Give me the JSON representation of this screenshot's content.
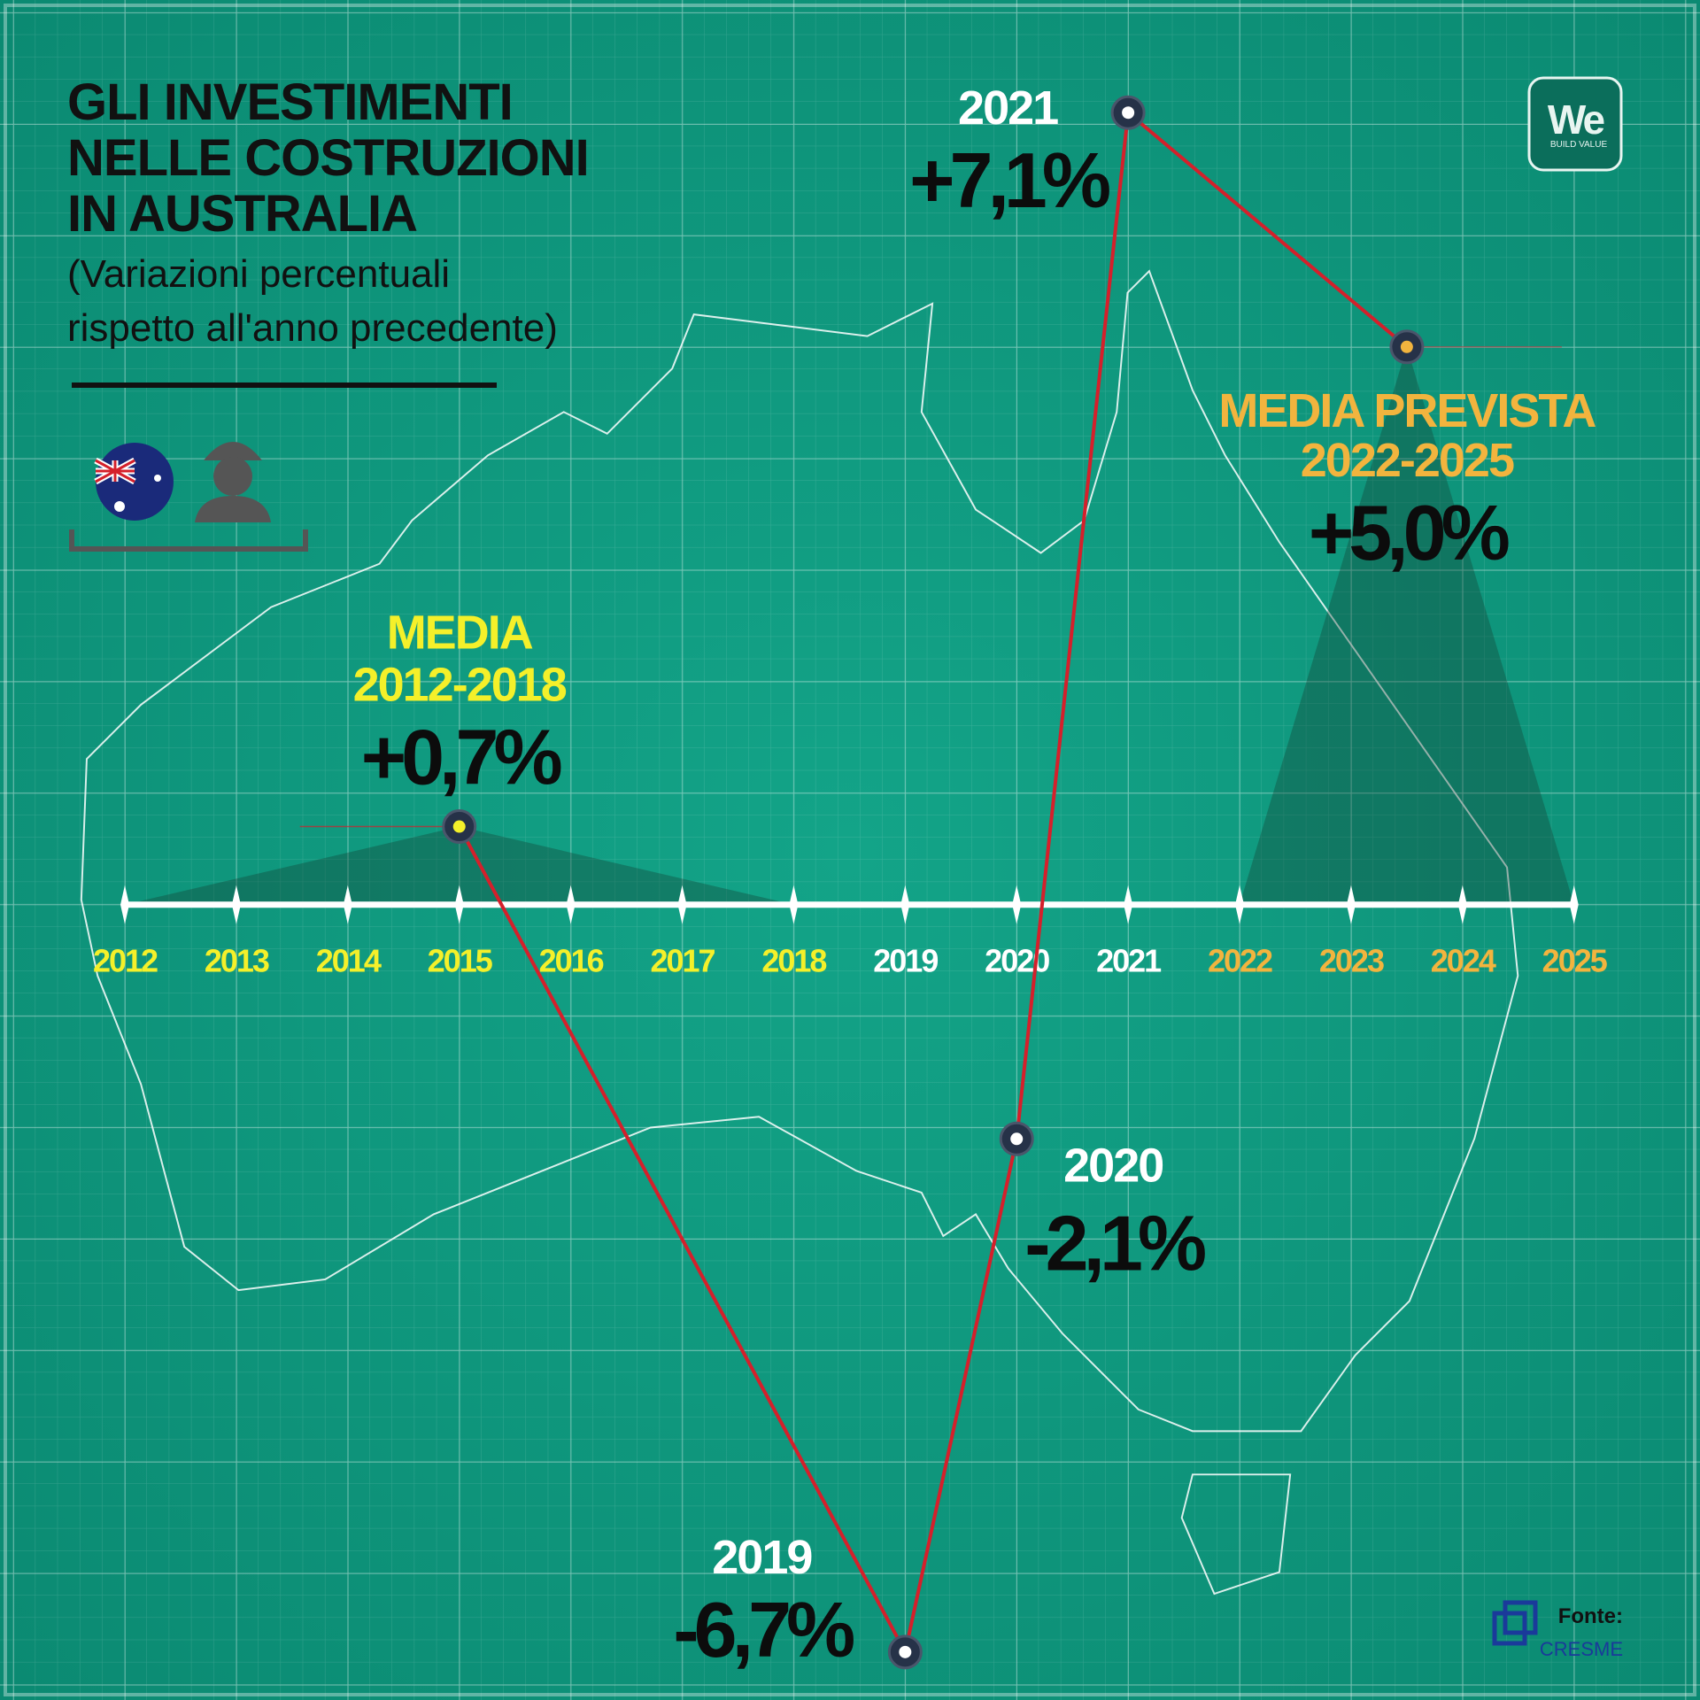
{
  "chart_data": {
    "type": "line",
    "title": [
      "GLI INVESTIMENTI",
      "NELLE COSTRUZIONI",
      "IN AUSTRALIA"
    ],
    "subtitle": [
      "(Variazioni percentuali",
      "rispetto all'anno precedente)"
    ],
    "xlim": [
      2010.88,
      2026.13
    ],
    "ylim": [
      -7.13,
      8.11
    ],
    "xticks": [
      2012,
      2013,
      2014,
      2015,
      2016,
      2017,
      2018,
      2019,
      2020,
      2021,
      2022,
      2023,
      2024,
      2025
    ],
    "xtick_colors": [
      "#f4f02a",
      "#f4f02a",
      "#f4f02a",
      "#f4f02a",
      "#f4f02a",
      "#f4f02a",
      "#f4f02a",
      "#ffffff",
      "#ffffff",
      "#ffffff",
      "#f2b43e",
      "#f2b43e",
      "#f2b43e",
      "#f2b43e"
    ],
    "series": [
      {
        "color": "#d4202b",
        "x": [
          2015,
          2019,
          2020,
          2021,
          2023.5
        ],
        "values": [
          0.7,
          -6.7,
          -2.1,
          7.1,
          5.0
        ],
        "value_labels": [
          "+0,7%",
          "-6,7%",
          "-2,1%",
          "+7,1%",
          "+5,0%"
        ]
      }
    ],
    "point_labels": [
      [
        "MEDIA",
        "2012-2018"
      ],
      [
        "2019"
      ],
      [
        "2020"
      ],
      [
        "2021"
      ],
      [
        "MEDIA PREVISTA",
        "2022-2025"
      ]
    ],
    "point_label_colors": [
      "#f4f02a",
      "#ffffff",
      "#ffffff",
      "#ffffff",
      "#f2b43e"
    ],
    "logo": "We",
    "logo_tagline": "BUILD VALUE",
    "source_label": "Fonte:",
    "source": "CRESME"
  }
}
